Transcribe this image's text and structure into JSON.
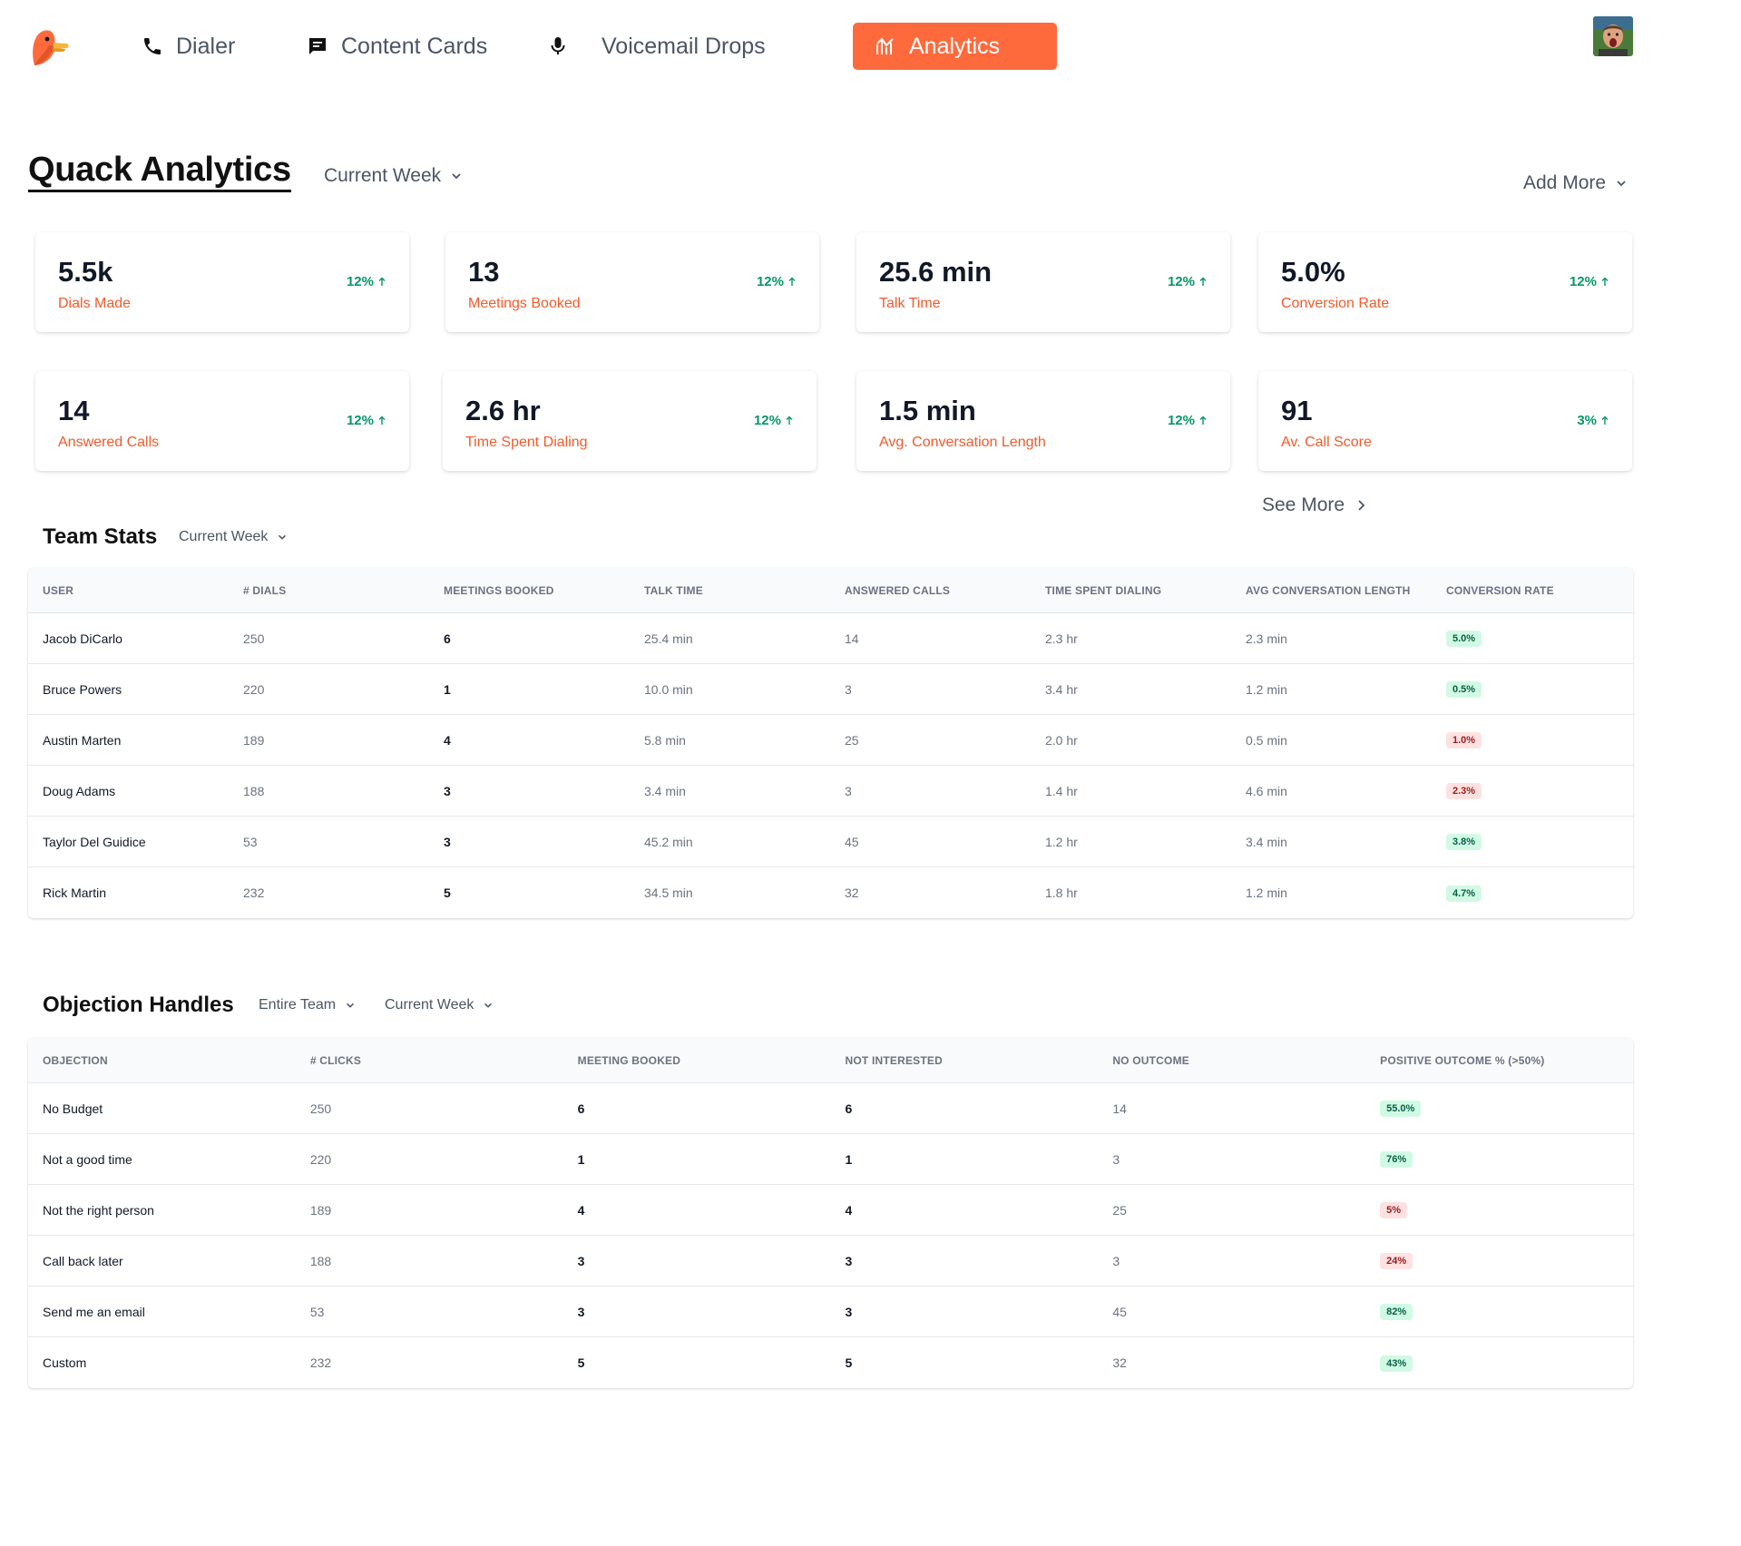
{
  "nav": {
    "items": [
      {
        "label": "Dialer",
        "icon": "phone-icon"
      },
      {
        "label": "Content Cards",
        "icon": "message-icon"
      },
      {
        "label": "Voicemail Drops",
        "icon": "microphone-icon"
      },
      {
        "label": "Analytics",
        "icon": "analytics-icon",
        "active": true
      }
    ]
  },
  "colors": {
    "accent": "#ff6a3d",
    "label": "#f15a2b",
    "positive": "#059669"
  },
  "header": {
    "title": "Quack Analytics",
    "period": "Current Week",
    "add_more": "Add More"
  },
  "stats": [
    {
      "value": "5.5k",
      "label": "Dials Made",
      "change": "12%"
    },
    {
      "value": "13",
      "label": "Meetings Booked",
      "change": "12%"
    },
    {
      "value": "25.6 min",
      "label": "Talk Time",
      "change": "12%"
    },
    {
      "value": "5.0%",
      "label": "Conversion Rate",
      "change": "12%"
    },
    {
      "value": "14",
      "label": "Answered Calls",
      "change": "12%"
    },
    {
      "value": "2.6 hr",
      "label": "Time Spent Dialing",
      "change": "12%"
    },
    {
      "value": "1.5 min",
      "label": "Avg. Conversation Length",
      "change": "12%"
    },
    {
      "value": "91",
      "label": "Av. Call Score",
      "change": "3%"
    }
  ],
  "see_more": "See More",
  "team_stats": {
    "title": "Team Stats",
    "period": "Current Week",
    "columns": [
      "User",
      "# Dials",
      "Meetings Booked",
      "Talk Time",
      "Answered Calls",
      "Time Spent Dialing",
      "Avg Conversation Length",
      "Conversion Rate"
    ],
    "rows": [
      {
        "user": "Jacob DiCarlo",
        "dials": "250",
        "meetings": "6",
        "talk": "25.4 min",
        "answered": "14",
        "dialing": "2.3 hr",
        "avg": "2.3 min",
        "rate": "5.0%",
        "status": "good"
      },
      {
        "user": "Bruce Powers",
        "dials": "220",
        "meetings": "1",
        "talk": "10.0 min",
        "answered": "3",
        "dialing": "3.4 hr",
        "avg": "1.2 min",
        "rate": "0.5%",
        "status": "good"
      },
      {
        "user": "Austin Marten",
        "dials": "189",
        "meetings": "4",
        "talk": "5.8 min",
        "answered": "25",
        "dialing": "2.0 hr",
        "avg": "0.5 min",
        "rate": "1.0%",
        "status": "bad"
      },
      {
        "user": "Doug Adams",
        "dials": "188",
        "meetings": "3",
        "talk": "3.4 min",
        "answered": "3",
        "dialing": "1.4 hr",
        "avg": "4.6 min",
        "rate": "2.3%",
        "status": "bad"
      },
      {
        "user": "Taylor Del Guidice",
        "dials": "53",
        "meetings": "3",
        "talk": "45.2 min",
        "answered": "45",
        "dialing": "1.2 hr",
        "avg": "3.4 min",
        "rate": "3.8%",
        "status": "good"
      },
      {
        "user": "Rick Martin",
        "dials": "232",
        "meetings": "5",
        "talk": "34.5 min",
        "answered": "32",
        "dialing": "1.8 hr",
        "avg": "1.2 min",
        "rate": "4.7%",
        "status": "good"
      }
    ]
  },
  "objections": {
    "title": "Objection Handles",
    "team_filter": "Entire Team",
    "period": "Current Week",
    "columns": [
      "Objection",
      "# Clicks",
      "Meeting Booked",
      "Not Interested",
      "No Outcome",
      "Positive Outcome % (>50%)"
    ],
    "rows": [
      {
        "objection": "No Budget",
        "clicks": "250",
        "booked": "6",
        "not_interested": "6",
        "no_outcome": "14",
        "positive": "55.0%",
        "status": "good"
      },
      {
        "objection": "Not a good time",
        "clicks": "220",
        "booked": "1",
        "not_interested": "1",
        "no_outcome": "3",
        "positive": "76%",
        "status": "good"
      },
      {
        "objection": "Not the right person",
        "clicks": "189",
        "booked": "4",
        "not_interested": "4",
        "no_outcome": "25",
        "positive": "5%",
        "status": "bad"
      },
      {
        "objection": "Call back later",
        "clicks": "188",
        "booked": "3",
        "not_interested": "3",
        "no_outcome": "3",
        "positive": "24%",
        "status": "bad"
      },
      {
        "objection": "Send me an email",
        "clicks": "53",
        "booked": "3",
        "not_interested": "3",
        "no_outcome": "45",
        "positive": "82%",
        "status": "good"
      },
      {
        "objection": "Custom",
        "clicks": "232",
        "booked": "5",
        "not_interested": "5",
        "no_outcome": "32",
        "positive": "43%",
        "status": "good"
      }
    ]
  }
}
